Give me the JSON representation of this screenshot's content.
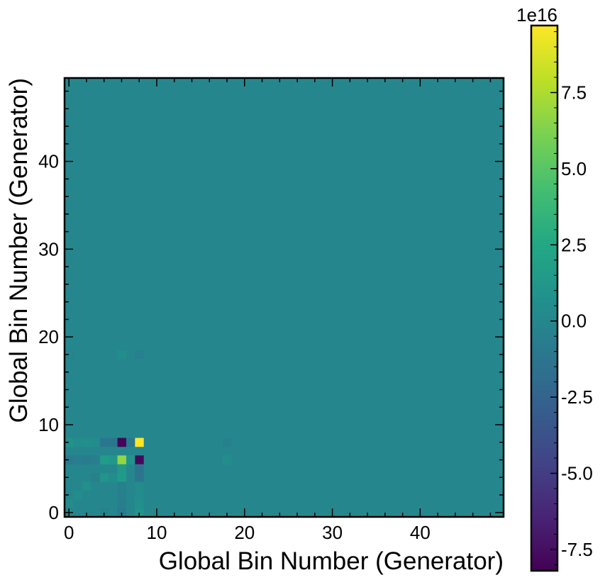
{
  "chart_data": {
    "type": "heatmap",
    "title": "",
    "xlabel": "Global Bin Number (Generator)",
    "ylabel": "Global Bin Number (Generator)",
    "x_bins": 50,
    "y_bins": 50,
    "xlim": [
      -0.5,
      49.5
    ],
    "ylim": [
      -0.5,
      49.5
    ],
    "x_ticks": [
      "0",
      "10",
      "20",
      "30",
      "40"
    ],
    "x_tick_values": [
      0,
      10,
      20,
      30,
      40
    ],
    "y_ticks": [
      "0",
      "10",
      "20",
      "30",
      "40"
    ],
    "y_tick_values": [
      0,
      10,
      20,
      30,
      40
    ],
    "colormap": "viridis",
    "colorbar": {
      "vmin": -8.2,
      "vmax": 9.7,
      "offset_text": "1e16",
      "tick_values": [
        -7.5,
        -5.0,
        -2.5,
        0.0,
        2.5,
        5.0,
        7.5
      ],
      "tick_labels": [
        "-7.5",
        "-5.0",
        "-2.5",
        "0.0",
        "2.5",
        "5.0",
        "7.5"
      ]
    },
    "background_value": 0.0,
    "cells": [
      {
        "x": 8,
        "y": 8,
        "v": 9.7
      },
      {
        "x": 7,
        "y": 8,
        "v": -1.0
      },
      {
        "x": 6,
        "y": 8,
        "v": -8.0
      },
      {
        "x": 5,
        "y": 8,
        "v": -1.2
      },
      {
        "x": 4,
        "y": 8,
        "v": -1.2
      },
      {
        "x": 3,
        "y": 8,
        "v": 0.5
      },
      {
        "x": 2,
        "y": 8,
        "v": 0.6
      },
      {
        "x": 1,
        "y": 8,
        "v": 0.4
      },
      {
        "x": 0,
        "y": 8,
        "v": 0.9
      },
      {
        "x": 18,
        "y": 8,
        "v": -0.4
      },
      {
        "x": 8,
        "y": 6,
        "v": -7.8
      },
      {
        "x": 7,
        "y": 6,
        "v": 1.0
      },
      {
        "x": 6,
        "y": 6,
        "v": 6.8
      },
      {
        "x": 5,
        "y": 6,
        "v": 1.2
      },
      {
        "x": 4,
        "y": 6,
        "v": 1.6
      },
      {
        "x": 3,
        "y": 6,
        "v": -0.6
      },
      {
        "x": 2,
        "y": 6,
        "v": -0.8
      },
      {
        "x": 1,
        "y": 6,
        "v": -0.6
      },
      {
        "x": 0,
        "y": 6,
        "v": -0.9
      },
      {
        "x": 18,
        "y": 6,
        "v": 0.5
      },
      {
        "x": 8,
        "y": 5,
        "v": -1.3
      },
      {
        "x": 6,
        "y": 5,
        "v": 1.4
      },
      {
        "x": 8,
        "y": 4,
        "v": -1.2
      },
      {
        "x": 6,
        "y": 4,
        "v": 1.5
      },
      {
        "x": 5,
        "y": 4,
        "v": 0.5
      },
      {
        "x": 4,
        "y": 4,
        "v": 1.0
      },
      {
        "x": 3,
        "y": 4,
        "v": -0.4
      },
      {
        "x": 8,
        "y": 3,
        "v": 0.4
      },
      {
        "x": 6,
        "y": 3,
        "v": -0.5
      },
      {
        "x": 2,
        "y": 3,
        "v": 0.6
      },
      {
        "x": 8,
        "y": 2,
        "v": 0.4
      },
      {
        "x": 6,
        "y": 2,
        "v": -0.4
      },
      {
        "x": 1,
        "y": 2,
        "v": 0.5
      },
      {
        "x": 8,
        "y": 1,
        "v": 0.6
      },
      {
        "x": 6,
        "y": 1,
        "v": -0.6
      },
      {
        "x": 0,
        "y": 1,
        "v": 0.4
      },
      {
        "x": 8,
        "y": 0,
        "v": 0.9
      },
      {
        "x": 6,
        "y": 0,
        "v": -0.9
      },
      {
        "x": 4,
        "y": 0,
        "v": -0.4
      },
      {
        "x": 8,
        "y": 18,
        "v": -0.5
      },
      {
        "x": 6,
        "y": 18,
        "v": 0.5
      },
      {
        "x": 0,
        "y": 18,
        "v": -0.2
      }
    ]
  }
}
